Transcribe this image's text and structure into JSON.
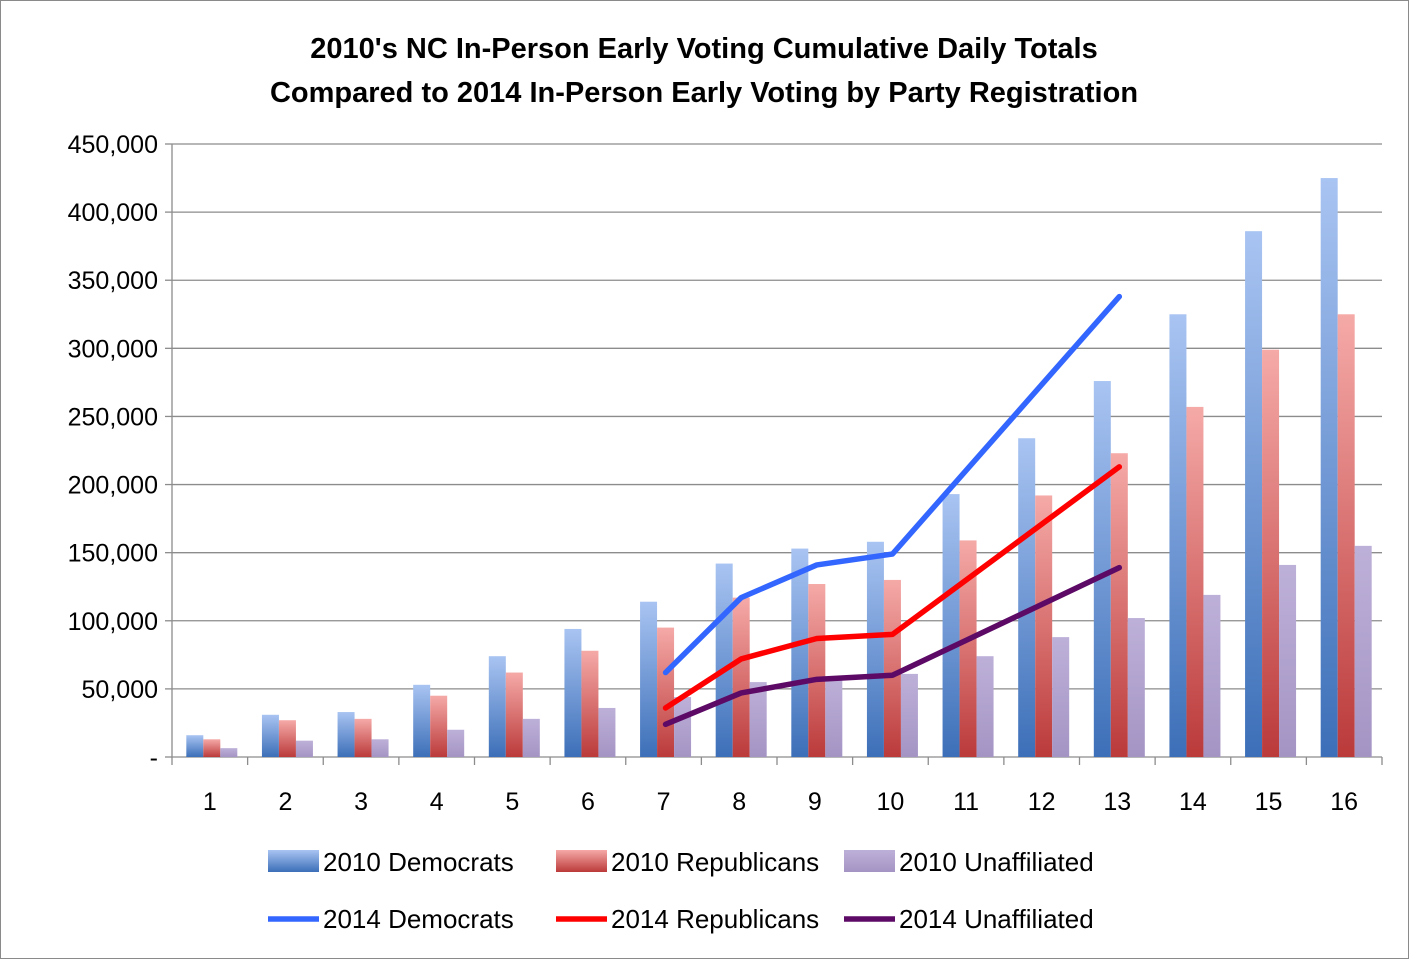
{
  "chart_data": {
    "type": "bar",
    "title": "2010's NC In-Person Early Voting Cumulative Daily Totals",
    "subtitle": "Compared to 2014 In-Person Early Voting by Party Registration",
    "xlabel": "",
    "ylabel": "",
    "categories": [
      "1",
      "2",
      "3",
      "4",
      "5",
      "6",
      "7",
      "8",
      "9",
      "10",
      "11",
      "12",
      "13",
      "14",
      "15",
      "16"
    ],
    "ylim": [
      0,
      450000
    ],
    "y_ticks": [
      0,
      50000,
      100000,
      150000,
      200000,
      250000,
      300000,
      350000,
      400000,
      450000
    ],
    "y_tick_labels": [
      "-",
      "50,000",
      "100,000",
      "150,000",
      "200,000",
      "250,000",
      "300,000",
      "350,000",
      "400,000",
      "450,000"
    ],
    "grid": true,
    "legend_position": "bottom",
    "bar_series": [
      {
        "name": "2010 Democrats",
        "color": "#4a7fc6",
        "values": [
          16000,
          31000,
          33000,
          53000,
          74000,
          94000,
          114000,
          142000,
          153000,
          158000,
          193000,
          234000,
          276000,
          325000,
          386000,
          425000
        ]
      },
      {
        "name": "2010 Republicans",
        "color": "#c84a4a",
        "values": [
          13000,
          27000,
          28000,
          45000,
          62000,
          78000,
          95000,
          117000,
          127000,
          130000,
          159000,
          192000,
          223000,
          257000,
          299000,
          325000
        ]
      },
      {
        "name": "2010 Unaffiliated",
        "color": "#ad9ec9",
        "values": [
          6500,
          12000,
          13000,
          20000,
          28000,
          36000,
          44000,
          55000,
          59000,
          61000,
          74000,
          88000,
          102000,
          119000,
          141000,
          155000
        ]
      }
    ],
    "line_series": [
      {
        "name": "2014 Democrats",
        "color": "#3366ff",
        "points": [
          [
            7,
            62000
          ],
          [
            8,
            117000
          ],
          [
            9,
            141000
          ],
          [
            10,
            149000
          ],
          [
            13,
            338000
          ]
        ]
      },
      {
        "name": "2014 Republicans",
        "color": "#ff0000",
        "points": [
          [
            7,
            36000
          ],
          [
            8,
            72000
          ],
          [
            9,
            87000
          ],
          [
            10,
            90000
          ],
          [
            13,
            213000
          ]
        ]
      },
      {
        "name": "2014 Unaffiliated",
        "color": "#5c0a66",
        "points": [
          [
            7,
            24000
          ],
          [
            8,
            47000
          ],
          [
            9,
            57000
          ],
          [
            10,
            60000
          ],
          [
            13,
            139000
          ]
        ]
      }
    ]
  }
}
